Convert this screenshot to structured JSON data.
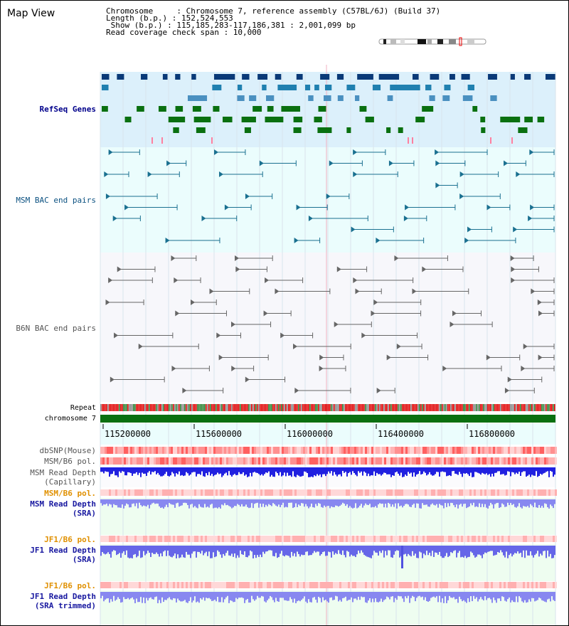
{
  "title": "Map View",
  "info": {
    "lines": [
      "Chromosome     : Chromosome 7, reference assembly (C57BL/6J) (Build 37)",
      "Length (b.p.) : 152,524,553",
      " Show (b.p.) : 115,185,283-117,186,381 : 2,001,099 bp",
      "Read coverage check span : 10,000"
    ]
  },
  "tracks": {
    "refseq": "RefSeq Genes",
    "msm_bac": "MSM BAC end pairs",
    "b6n_bac": "B6N BAC end pairs",
    "repeat": "Repeat",
    "chromosome": "chromosome 7",
    "dbsnp": "dbSNP(Mouse)",
    "msm_pol1": "MSM/B6 pol.",
    "msm_depth_cap_1": "MSM Read Depth",
    "msm_depth_cap_2": "(Capillary)",
    "msm_pol2": "MSM/B6 pol.",
    "msm_depth_sra_1": "MSM Read Depth",
    "msm_depth_sra_2": "(SRA)",
    "jf1_pol1": "JF1/B6 pol.",
    "jf1_depth_1": "JF1 Read Depth",
    "jf1_depth_2": "(SRA)",
    "jf1_pol2": "JF1/B6 pol.",
    "jf1_trim_1": "JF1 Read Depth",
    "jf1_trim_2": "(SRA trimmed)"
  },
  "axis": {
    "ticks": [
      "115200000",
      "115600000",
      "116000000",
      "116400000",
      "116800000"
    ]
  },
  "colors": {
    "refseq_bg": "#dcf0fb",
    "bac_bg": "#ebfdfd",
    "b6n_bg": "#f7f7fb",
    "axis_bg": "#ebfdfd",
    "chromosome": "#0a7010",
    "refseq_label": "#00008b",
    "msm_label": "#0a5080",
    "b6n_label": "#555555",
    "orange_label": "#e09000",
    "blue_label": "#1818a0"
  }
}
